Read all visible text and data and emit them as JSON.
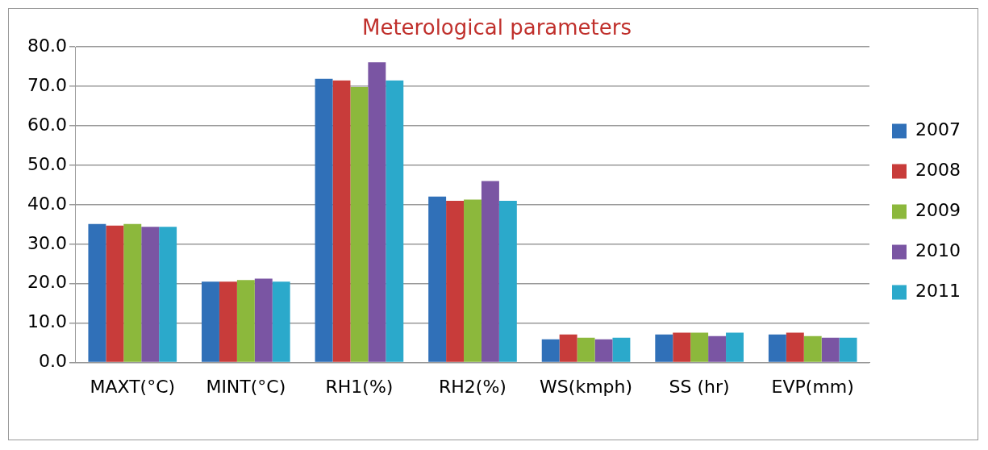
{
  "chart_data": {
    "type": "bar",
    "title": "Meterological parameters",
    "categories": [
      "MAXT(°C)",
      "MINT(°C)",
      "RH1(%)",
      "RH2(%)",
      "WS(kmph)",
      "SS (hr)",
      "EVP(mm)"
    ],
    "series": [
      {
        "name": "2007",
        "color": "#3070b8",
        "values": [
          35.1,
          20.5,
          71.9,
          42.1,
          5.9,
          7.1,
          7.1
        ]
      },
      {
        "name": "2008",
        "color": "#c83c3a",
        "values": [
          34.7,
          20.5,
          71.5,
          41.0,
          7.1,
          7.6,
          7.6
        ]
      },
      {
        "name": "2009",
        "color": "#8cb83c",
        "values": [
          35.1,
          20.9,
          69.8,
          41.3,
          6.3,
          7.6,
          6.7
        ]
      },
      {
        "name": "2010",
        "color": "#7a55a3",
        "values": [
          34.4,
          21.3,
          76.1,
          46.0,
          5.9,
          6.7,
          6.3
        ]
      },
      {
        "name": "2011",
        "color": "#2ba9cb",
        "values": [
          34.4,
          20.5,
          71.5,
          41.0,
          6.3,
          7.6,
          6.3
        ]
      }
    ],
    "ylim": [
      0,
      80
    ],
    "yticks": [
      {
        "value": 0,
        "label": "0.0"
      },
      {
        "value": 10,
        "label": "10.0"
      },
      {
        "value": 20,
        "label": "20.0"
      },
      {
        "value": 30,
        "label": "30.0"
      },
      {
        "value": 40,
        "label": "40.0"
      },
      {
        "value": 50,
        "label": "50.0"
      },
      {
        "value": 60,
        "label": "60.0"
      },
      {
        "value": 70,
        "label": "70.0"
      },
      {
        "value": 80,
        "label": "80.0"
      }
    ],
    "grid": "y",
    "legend": "right"
  }
}
